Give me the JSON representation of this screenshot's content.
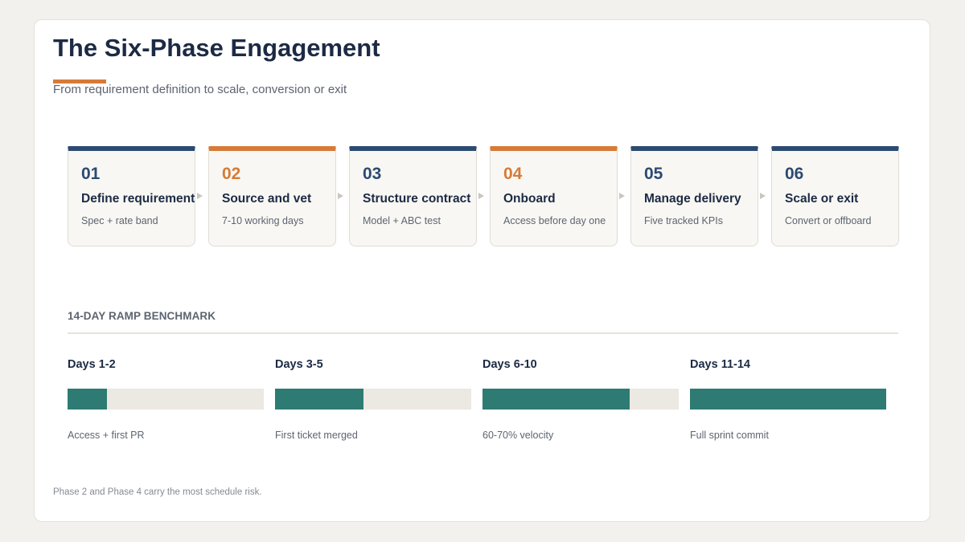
{
  "title": "The Six-Phase Engagement",
  "subtitle": "From requirement definition to scale, conversion or exit",
  "colors": {
    "navy": "#2c4a72",
    "orange": "#d67b37",
    "teal": "#2e7b73",
    "track": "#ece8e2"
  },
  "phases": [
    {
      "num": "01",
      "name": "Define requirement",
      "desc": "Spec + rate band",
      "accent": false
    },
    {
      "num": "02",
      "name": "Source and vet",
      "desc": "7-10 working days",
      "accent": true
    },
    {
      "num": "03",
      "name": "Structure contract",
      "desc": "Model + ABC test",
      "accent": false
    },
    {
      "num": "04",
      "name": "Onboard",
      "desc": "Access before day one",
      "accent": true
    },
    {
      "num": "05",
      "name": "Manage delivery",
      "desc": "Five tracked KPIs",
      "accent": false
    },
    {
      "num": "06",
      "name": "Scale or exit",
      "desc": "Convert or offboard",
      "accent": false
    }
  ],
  "ramp": {
    "heading": "14-DAY RAMP BENCHMARK",
    "stages": [
      {
        "label": "Days 1-2",
        "progress": 0.2,
        "note": "Access + first PR"
      },
      {
        "label": "Days 3-5",
        "progress": 0.45,
        "note": "First ticket merged"
      },
      {
        "label": "Days 6-10",
        "progress": 0.75,
        "note": "60-70% velocity"
      },
      {
        "label": "Days 11-14",
        "progress": 1.0,
        "note": "Full sprint commit"
      }
    ]
  },
  "footnote": "Phase 2 and Phase 4 carry the most schedule risk."
}
